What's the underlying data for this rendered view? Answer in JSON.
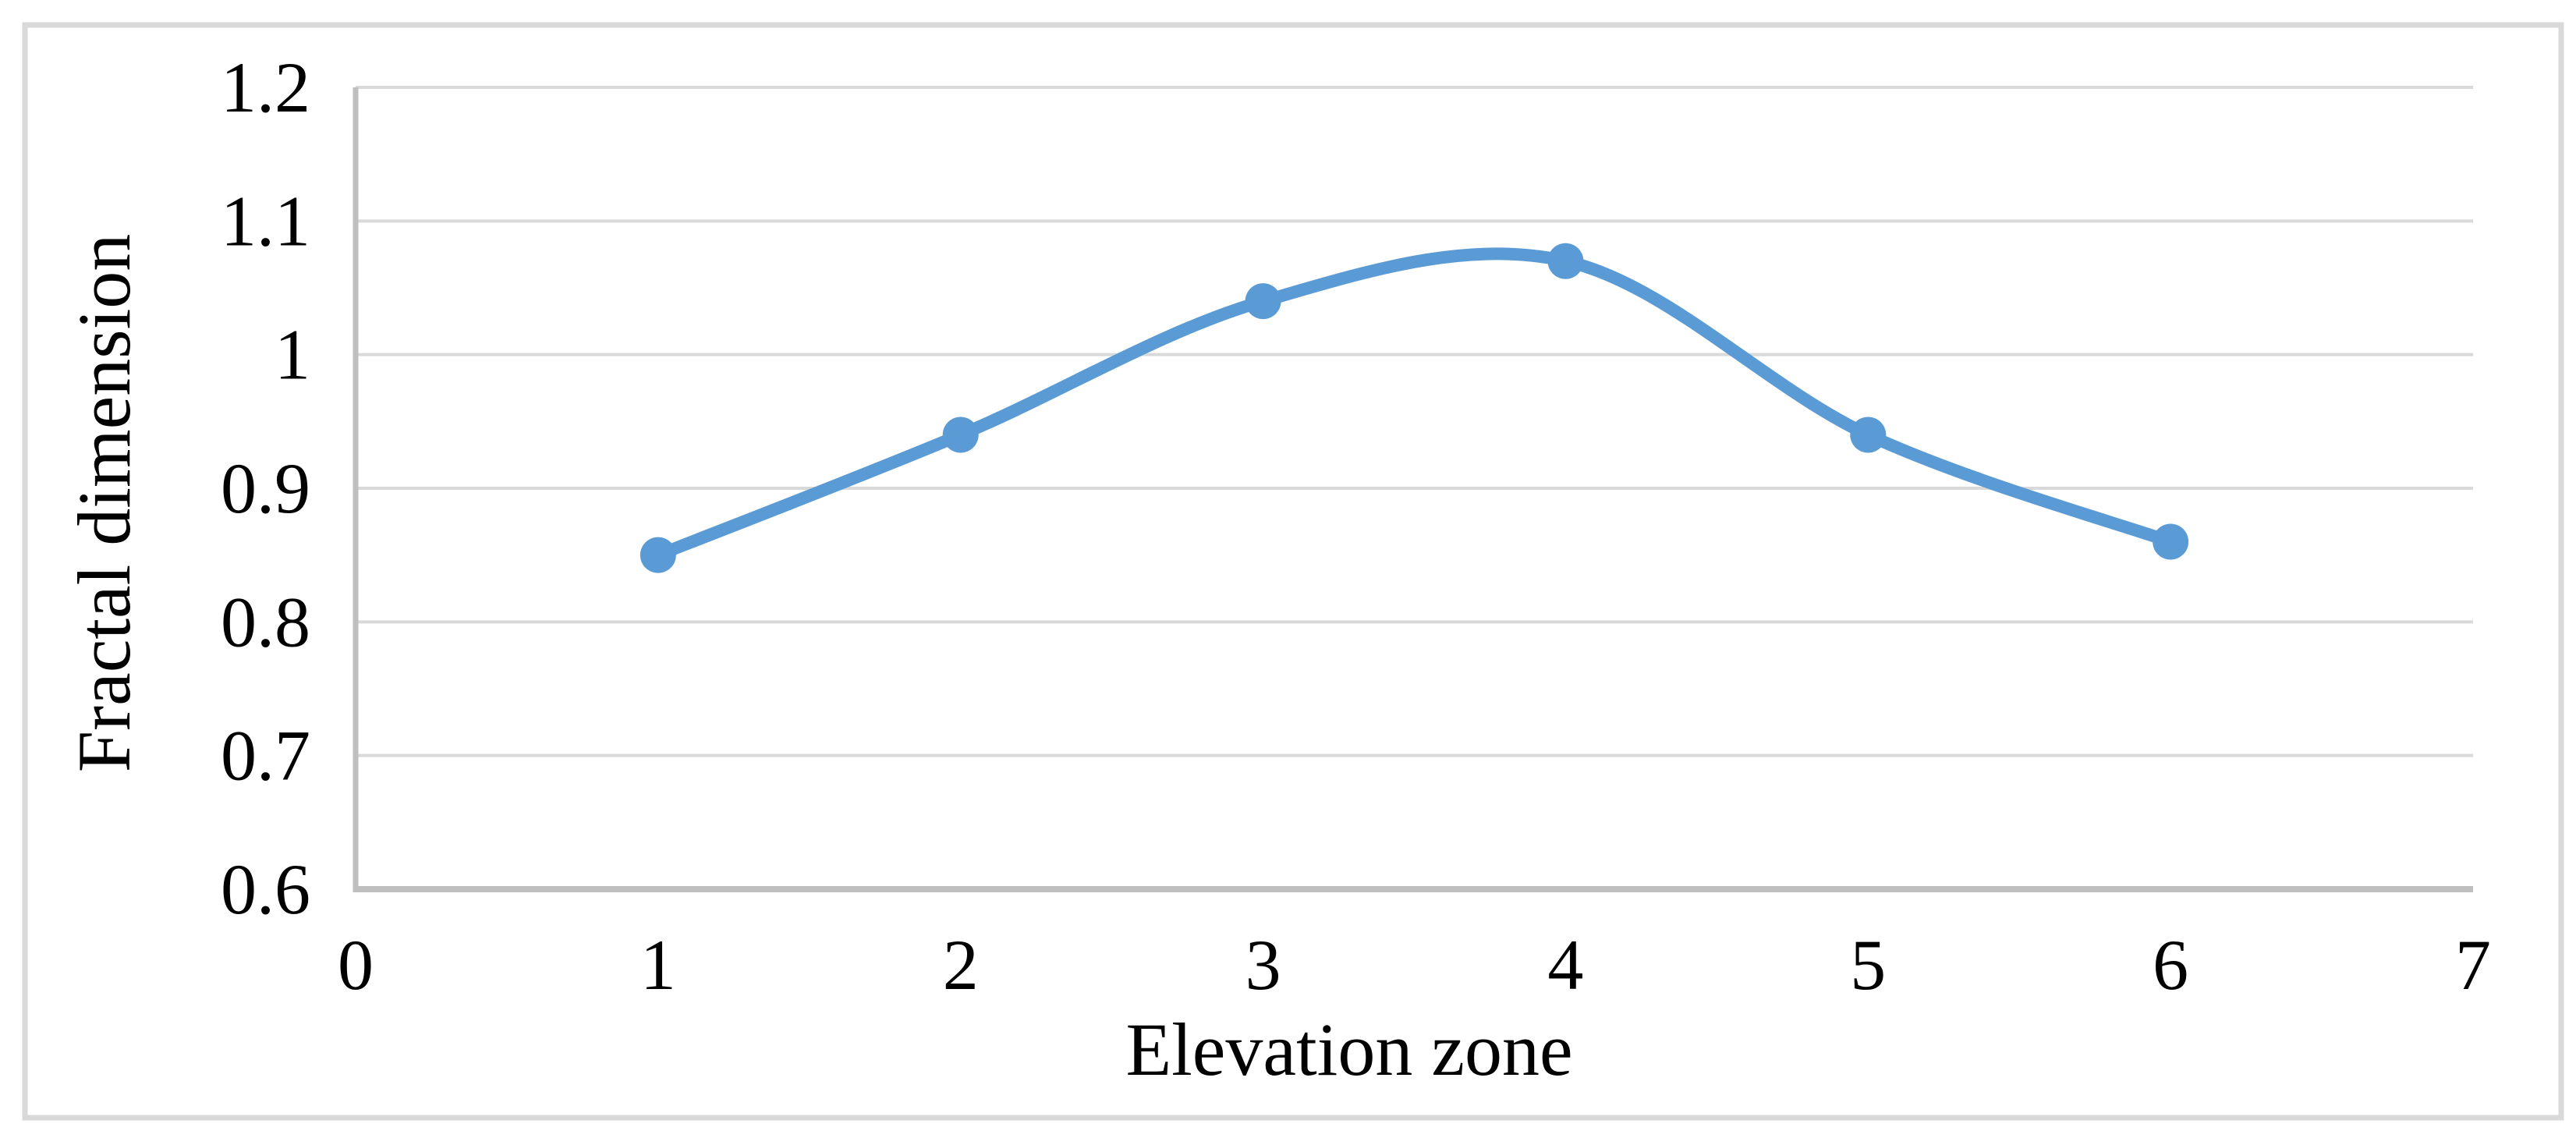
{
  "figure": {
    "background": "#FFFFFF",
    "border_color": "#D9D9D9"
  },
  "chart_data": {
    "type": "line",
    "title": "",
    "xlabel": "Elevation zone",
    "ylabel": "Fractal dimension",
    "x": [
      1,
      2,
      3,
      4,
      5,
      6
    ],
    "series": [
      {
        "name": "Fractal dimension",
        "values": [
          0.85,
          0.94,
          1.04,
          1.07,
          0.94,
          0.86
        ]
      }
    ],
    "xlim": [
      0,
      7
    ],
    "ylim": [
      0.6,
      1.2
    ],
    "x_tick_values": [
      0,
      1,
      2,
      3,
      4,
      5,
      6,
      7
    ],
    "x_tick_labels": [
      "0",
      "1",
      "2",
      "3",
      "4",
      "5",
      "6",
      "7"
    ],
    "y_tick_values": [
      0.6,
      0.7,
      0.8,
      0.9,
      1.0,
      1.1,
      1.2
    ],
    "y_tick_labels": [
      "0.6",
      "0.7",
      "0.8",
      "0.9",
      "1",
      "1.1",
      "1.2"
    ],
    "grid": "horizontal",
    "legend": "none",
    "smooth": true,
    "marker": "circle",
    "line_color": "#5B9BD5",
    "marker_color": "#5B9BD5",
    "gridline_color": "#D9D9D9",
    "axis_line_color": "#BFBFBF",
    "text_color": "#000000"
  }
}
